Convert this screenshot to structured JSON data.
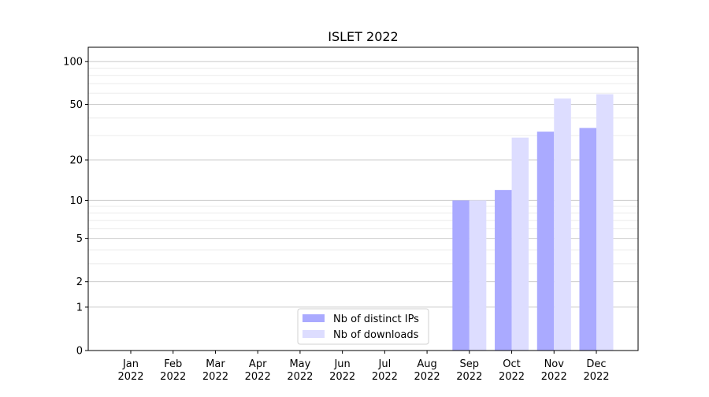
{
  "chart_data": {
    "type": "bar",
    "title": "ISLET 2022",
    "xlabel": "",
    "ylabel": "",
    "yscale": "log10(1+y)",
    "ylim": [
      0,
      126
    ],
    "yticks": [
      0,
      1,
      2,
      5,
      10,
      20,
      50,
      100
    ],
    "ytick_labels": [
      "0",
      "1",
      "2",
      "5",
      "10",
      "20",
      "50",
      "100"
    ],
    "categories": [
      [
        "Jan",
        "2022"
      ],
      [
        "Feb",
        "2022"
      ],
      [
        "Mar",
        "2022"
      ],
      [
        "Apr",
        "2022"
      ],
      [
        "May",
        "2022"
      ],
      [
        "Jun",
        "2022"
      ],
      [
        "Jul",
        "2022"
      ],
      [
        "Aug",
        "2022"
      ],
      [
        "Sep",
        "2022"
      ],
      [
        "Oct",
        "2022"
      ],
      [
        "Nov",
        "2022"
      ],
      [
        "Dec",
        "2022"
      ]
    ],
    "series": [
      {
        "name": "Nb of distinct IPs",
        "color": "#aaaaff",
        "values": [
          0,
          0,
          0,
          0,
          0,
          0,
          0,
          0,
          10,
          12,
          32,
          34
        ]
      },
      {
        "name": "Nb of downloads",
        "color": "#ddddff",
        "values": [
          0,
          0,
          0,
          0,
          0,
          0,
          0,
          0,
          10,
          29,
          55,
          59
        ]
      }
    ],
    "grid": true,
    "legend": "bottom-center"
  }
}
